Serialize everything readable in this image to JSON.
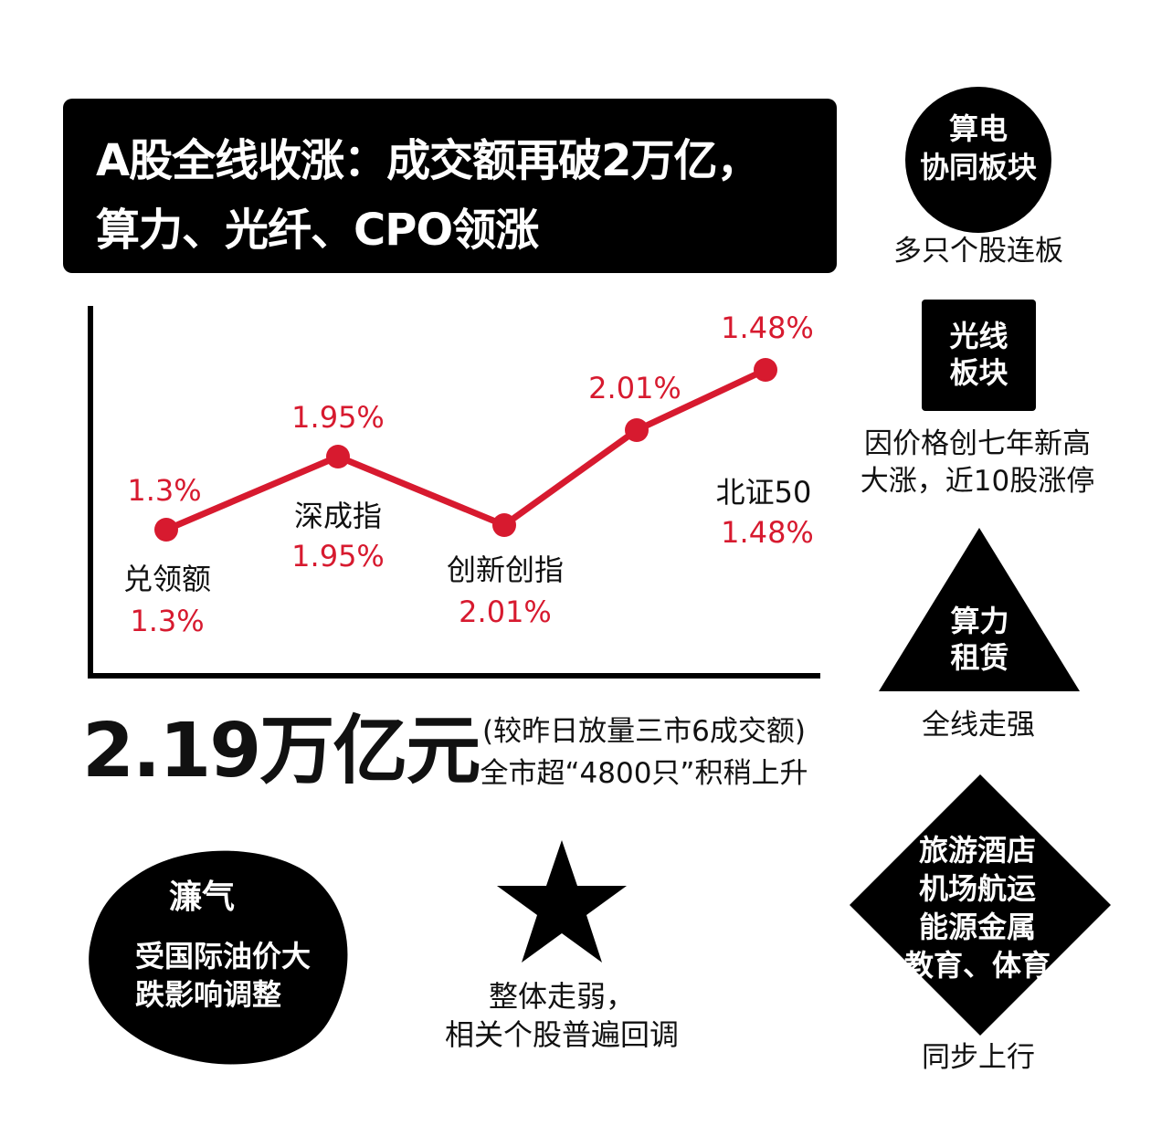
{
  "title": {
    "line1": "A股全线收涨：成交额再破2万亿，",
    "line2": "算力、光纤、CPO领涨"
  },
  "colors": {
    "accent": "#d71a2f",
    "dark": "#000000",
    "background": "#ffffff"
  },
  "chart_data": {
    "type": "line",
    "categories": [
      "兑领额",
      "深成指",
      "创新创指",
      "北证50"
    ],
    "series": [
      {
        "values": [
          1.3,
          1.95,
          2.01,
          1.48
        ]
      }
    ],
    "point_labels_top": [
      "1.3%",
      "1.95%",
      "2.01%",
      "1.48%"
    ],
    "point_labels_bottom": [
      "1.3%",
      "1.95%",
      "2.01%",
      "1.48%"
    ],
    "grid": false,
    "legend": "none"
  },
  "summary": {
    "amount": "2.19万亿元",
    "note_line1": "(较昨日放量三市6成交额)",
    "note_line2": "全市超“4800只”积稍上升"
  },
  "sectors": {
    "circle": {
      "title_line1": "算电",
      "title_line2": "协同板块",
      "caption": "多只个股连板"
    },
    "square": {
      "title_line1": "光线",
      "title_line2": "板块",
      "caption_line1": "因价格创七年新高",
      "caption_line2": "大涨，近10股涨停"
    },
    "triangle": {
      "title_line1": "算力",
      "title_line2": "租赁",
      "caption": "全线走强"
    },
    "diamond": {
      "line1": "旅游酒店",
      "line2": "机场航运",
      "line3": "能源金属",
      "line4": "教育、体育",
      "caption": "同步上行"
    },
    "blob": {
      "title": "濂气",
      "line1": "受国际油价大",
      "line2": "跌影响调整"
    },
    "star": {
      "line1": "整体走弱，",
      "line2": "相关个股普遍回调"
    }
  }
}
